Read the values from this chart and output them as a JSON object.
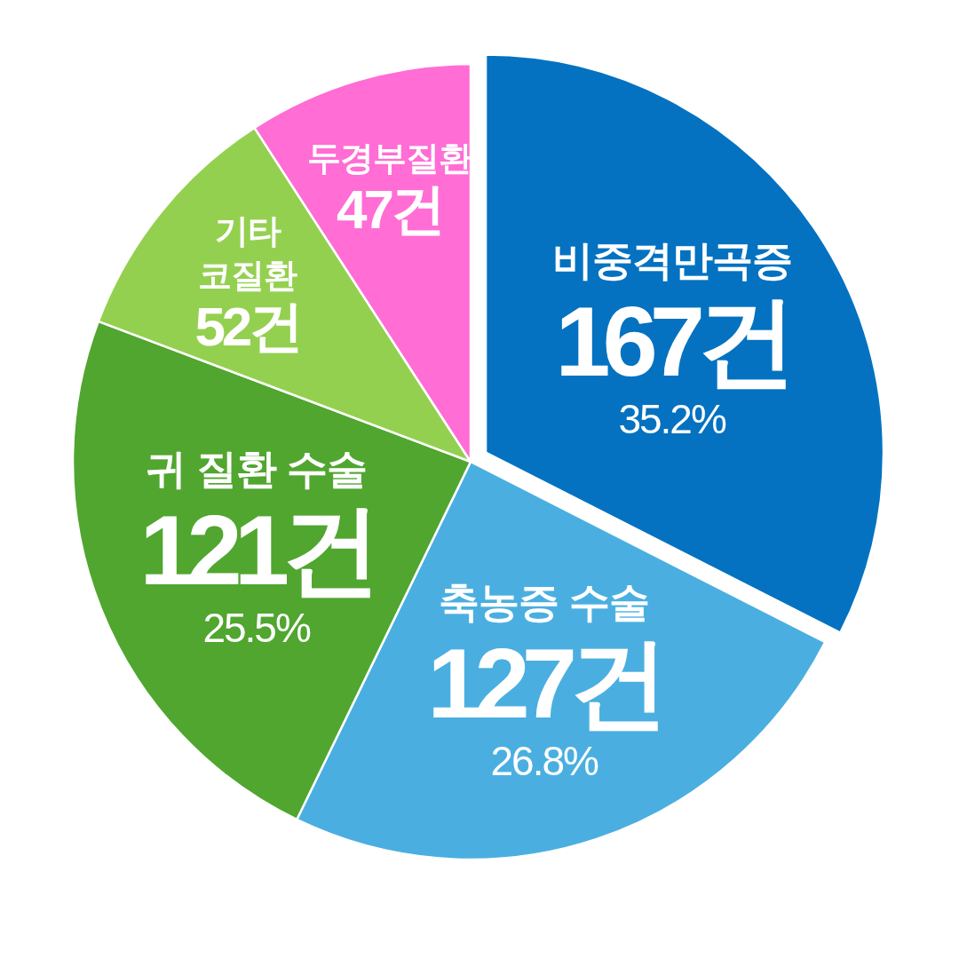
{
  "chart_data": {
    "type": "pie",
    "categories": [
      "비중격만곡증",
      "축농증 수술",
      "귀 질환 수술",
      "기타 코질환",
      "두경부질환"
    ],
    "values": [
      167,
      127,
      121,
      52,
      47
    ],
    "colors": [
      "#0472c0",
      "#4aafe0",
      "#50a62f",
      "#94d050",
      "#ff6dd5"
    ],
    "value_labels": [
      "167건",
      "127건",
      "121건",
      "52건",
      "47건"
    ],
    "annotations": [
      {
        "text": "35.2%",
        "x": "비중격만곡증"
      },
      {
        "text": "26.8%",
        "x": "축농증 수술"
      },
      {
        "text": "25.5%",
        "x": "귀 질환 수술"
      }
    ]
  }
}
